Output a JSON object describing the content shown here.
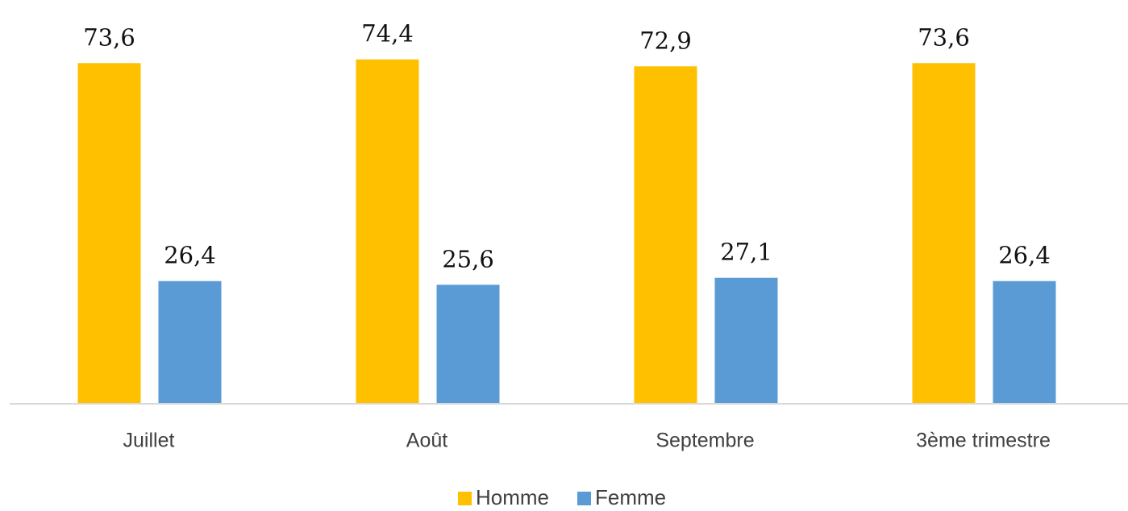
{
  "chart_data": {
    "type": "bar",
    "categories": [
      "Juillet",
      "Août",
      "Septembre",
      "3ème trimestre"
    ],
    "series": [
      {
        "name": "Homme",
        "color": "#ffc000",
        "values": [
          73.6,
          74.4,
          72.9,
          73.6
        ],
        "value_labels": [
          "73,6",
          "74,4",
          "72,9",
          "73,6"
        ]
      },
      {
        "name": "Femme",
        "color": "#5b9bd5",
        "values": [
          26.4,
          25.6,
          27.1,
          26.4
        ],
        "value_labels": [
          "26,4",
          "25,6",
          "27,1",
          "26,4"
        ]
      }
    ],
    "legend": "bottom"
  }
}
